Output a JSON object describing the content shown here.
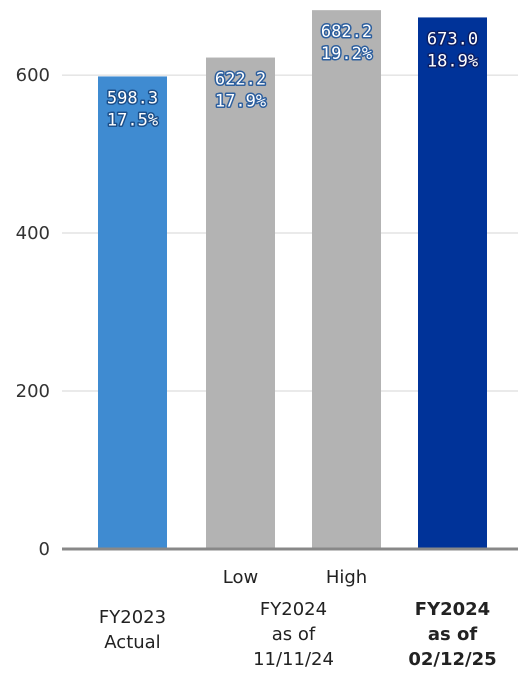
{
  "chart_data": {
    "type": "bar",
    "ylim": [
      0,
      690
    ],
    "yticks": [
      0,
      200,
      400,
      600
    ],
    "grid": true,
    "bars": [
      {
        "value": 598.3,
        "value_label": "598.3",
        "pct_label": "17.5%",
        "color": "#3f8bd1",
        "label_color": "#ffffff",
        "label_stroke": "#1c4f8a",
        "group": 0
      },
      {
        "value": 622.2,
        "value_label": "622.2",
        "pct_label": "17.9%",
        "color": "#b3b3b3",
        "label_color": "#ffffff",
        "label_stroke": "#2d5f9e",
        "group": 1,
        "sub_label": "Low"
      },
      {
        "value": 682.2,
        "value_label": "682.2",
        "pct_label": "19.2%",
        "color": "#b3b3b3",
        "label_color": "#ffffff",
        "label_stroke": "#2d5f9e",
        "group": 1,
        "sub_label": "High"
      },
      {
        "value": 673.0,
        "value_label": "673.0",
        "pct_label": "18.9%",
        "color": "#003399",
        "label_color": "#ffffff",
        "label_stroke": "#0b1f66",
        "group": 2
      }
    ],
    "groups": [
      {
        "lines": [
          "FY2023",
          "Actual"
        ],
        "bold": false
      },
      {
        "lines": [
          "FY2024",
          "as of",
          "11/11/24"
        ],
        "bold": false
      },
      {
        "lines": [
          "FY2024",
          "as of",
          "02/12/25"
        ],
        "bold": true
      }
    ],
    "colors": {
      "grid": "#d6d6d6",
      "axis": "#888888"
    }
  }
}
